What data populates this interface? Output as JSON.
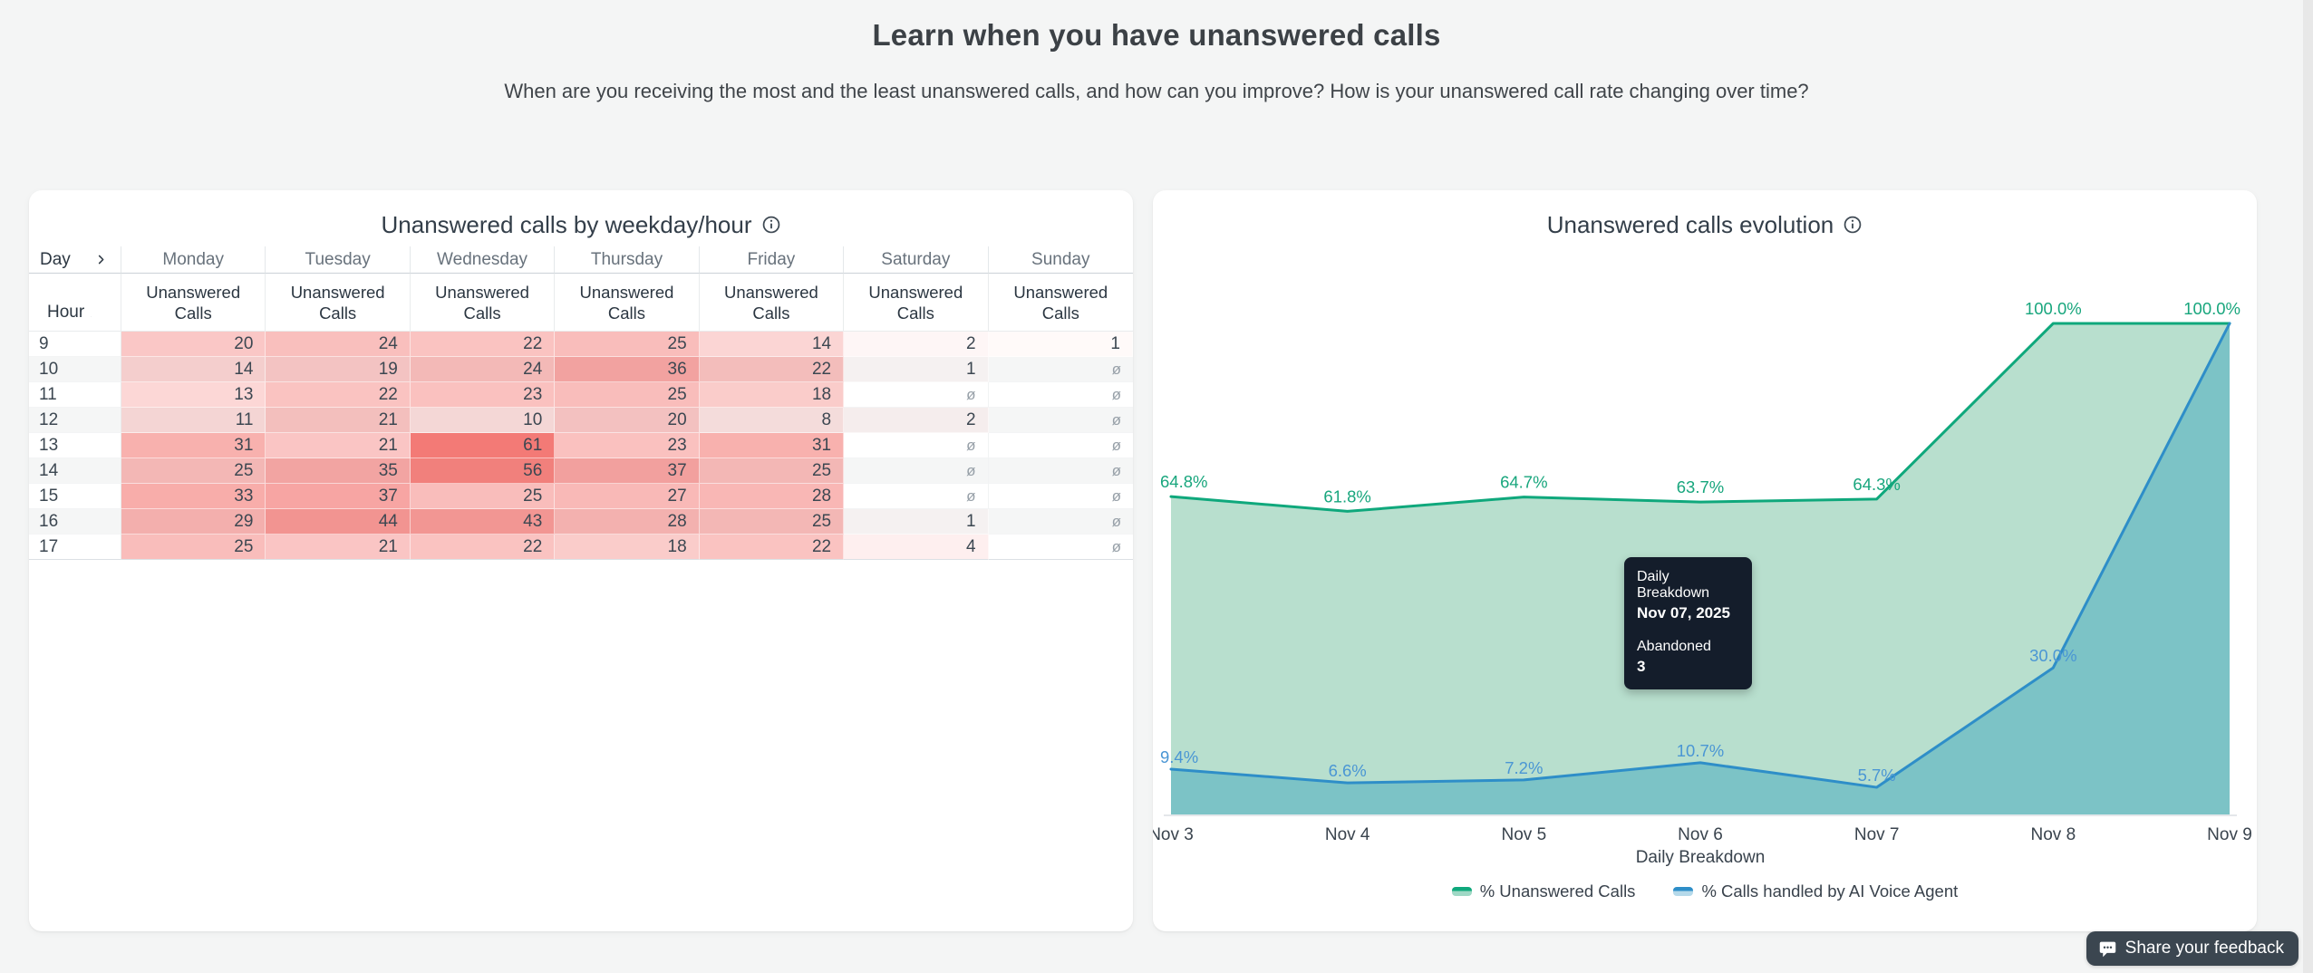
{
  "page": {
    "title": "Learn when you have unanswered calls",
    "subtitle": "When are you receiving the most and the least unanswered calls, and how can you improve? How is your unanswered call rate changing over time?"
  },
  "chart_data": [
    {
      "type": "heatmap",
      "title": "Unanswered calls by weekday/hour",
      "corner_col_label": "Day",
      "corner_row_label": "Hour",
      "value_label": "Unanswered Calls",
      "columns": [
        "Monday",
        "Tuesday",
        "Wednesday",
        "Thursday",
        "Friday",
        "Saturday",
        "Sunday"
      ],
      "rows": [
        "9",
        "10",
        "11",
        "12",
        "13",
        "14",
        "15",
        "16",
        "17"
      ],
      "values": [
        [
          20,
          24,
          22,
          25,
          14,
          2,
          1
        ],
        [
          14,
          19,
          24,
          36,
          22,
          1,
          null
        ],
        [
          13,
          22,
          23,
          25,
          18,
          null,
          null
        ],
        [
          11,
          21,
          10,
          20,
          8,
          2,
          null
        ],
        [
          31,
          21,
          61,
          23,
          31,
          null,
          null
        ],
        [
          25,
          35,
          56,
          37,
          25,
          null,
          null
        ],
        [
          33,
          37,
          25,
          27,
          28,
          null,
          null
        ],
        [
          29,
          44,
          43,
          28,
          25,
          1,
          null
        ],
        [
          25,
          21,
          22,
          18,
          22,
          4,
          null
        ]
      ],
      "empty_symbol": "ø",
      "max_value": 61,
      "heat_base_color": "#ef4944"
    },
    {
      "type": "area",
      "title": "Unanswered calls evolution",
      "xlabel": "Daily Breakdown",
      "x": [
        "Nov 3",
        "Nov 4",
        "Nov 5",
        "Nov 6",
        "Nov 7",
        "Nov 8",
        "Nov 9"
      ],
      "ylim": [
        0,
        105
      ],
      "grid": false,
      "legend_position": "bottom",
      "series": [
        {
          "name": "% Unanswered Calls",
          "color": "#0fa87c",
          "fill": "#b8dfce",
          "swatch_fill": "#9fd8c5",
          "label_color": "#18a67d",
          "values": [
            64.8,
            61.8,
            64.7,
            63.7,
            64.3,
            100.0,
            100.0
          ],
          "labels": [
            "64.8%",
            "61.8%",
            "64.7%",
            "63.7%",
            "64.3%",
            "100.0%",
            "100.0%"
          ]
        },
        {
          "name": "% Calls handled by AI Voice Agent",
          "color": "#2e8ec8",
          "fill": "#7cc3c6",
          "swatch_fill": "#b5d9ea",
          "label_color": "#4a96d4",
          "values": [
            9.4,
            6.6,
            7.2,
            10.7,
            5.7,
            30.0,
            100.0
          ],
          "labels": [
            "9.4%",
            "6.6%",
            "7.2%",
            "10.7%",
            "5.7%",
            "30.0%",
            ""
          ]
        }
      ],
      "tooltip": {
        "title": "Daily Breakdown",
        "date": "Nov 07, 2025",
        "series_label": "Abandoned",
        "value": "3"
      }
    }
  ],
  "feedback_button": {
    "label": "Share your feedback"
  }
}
